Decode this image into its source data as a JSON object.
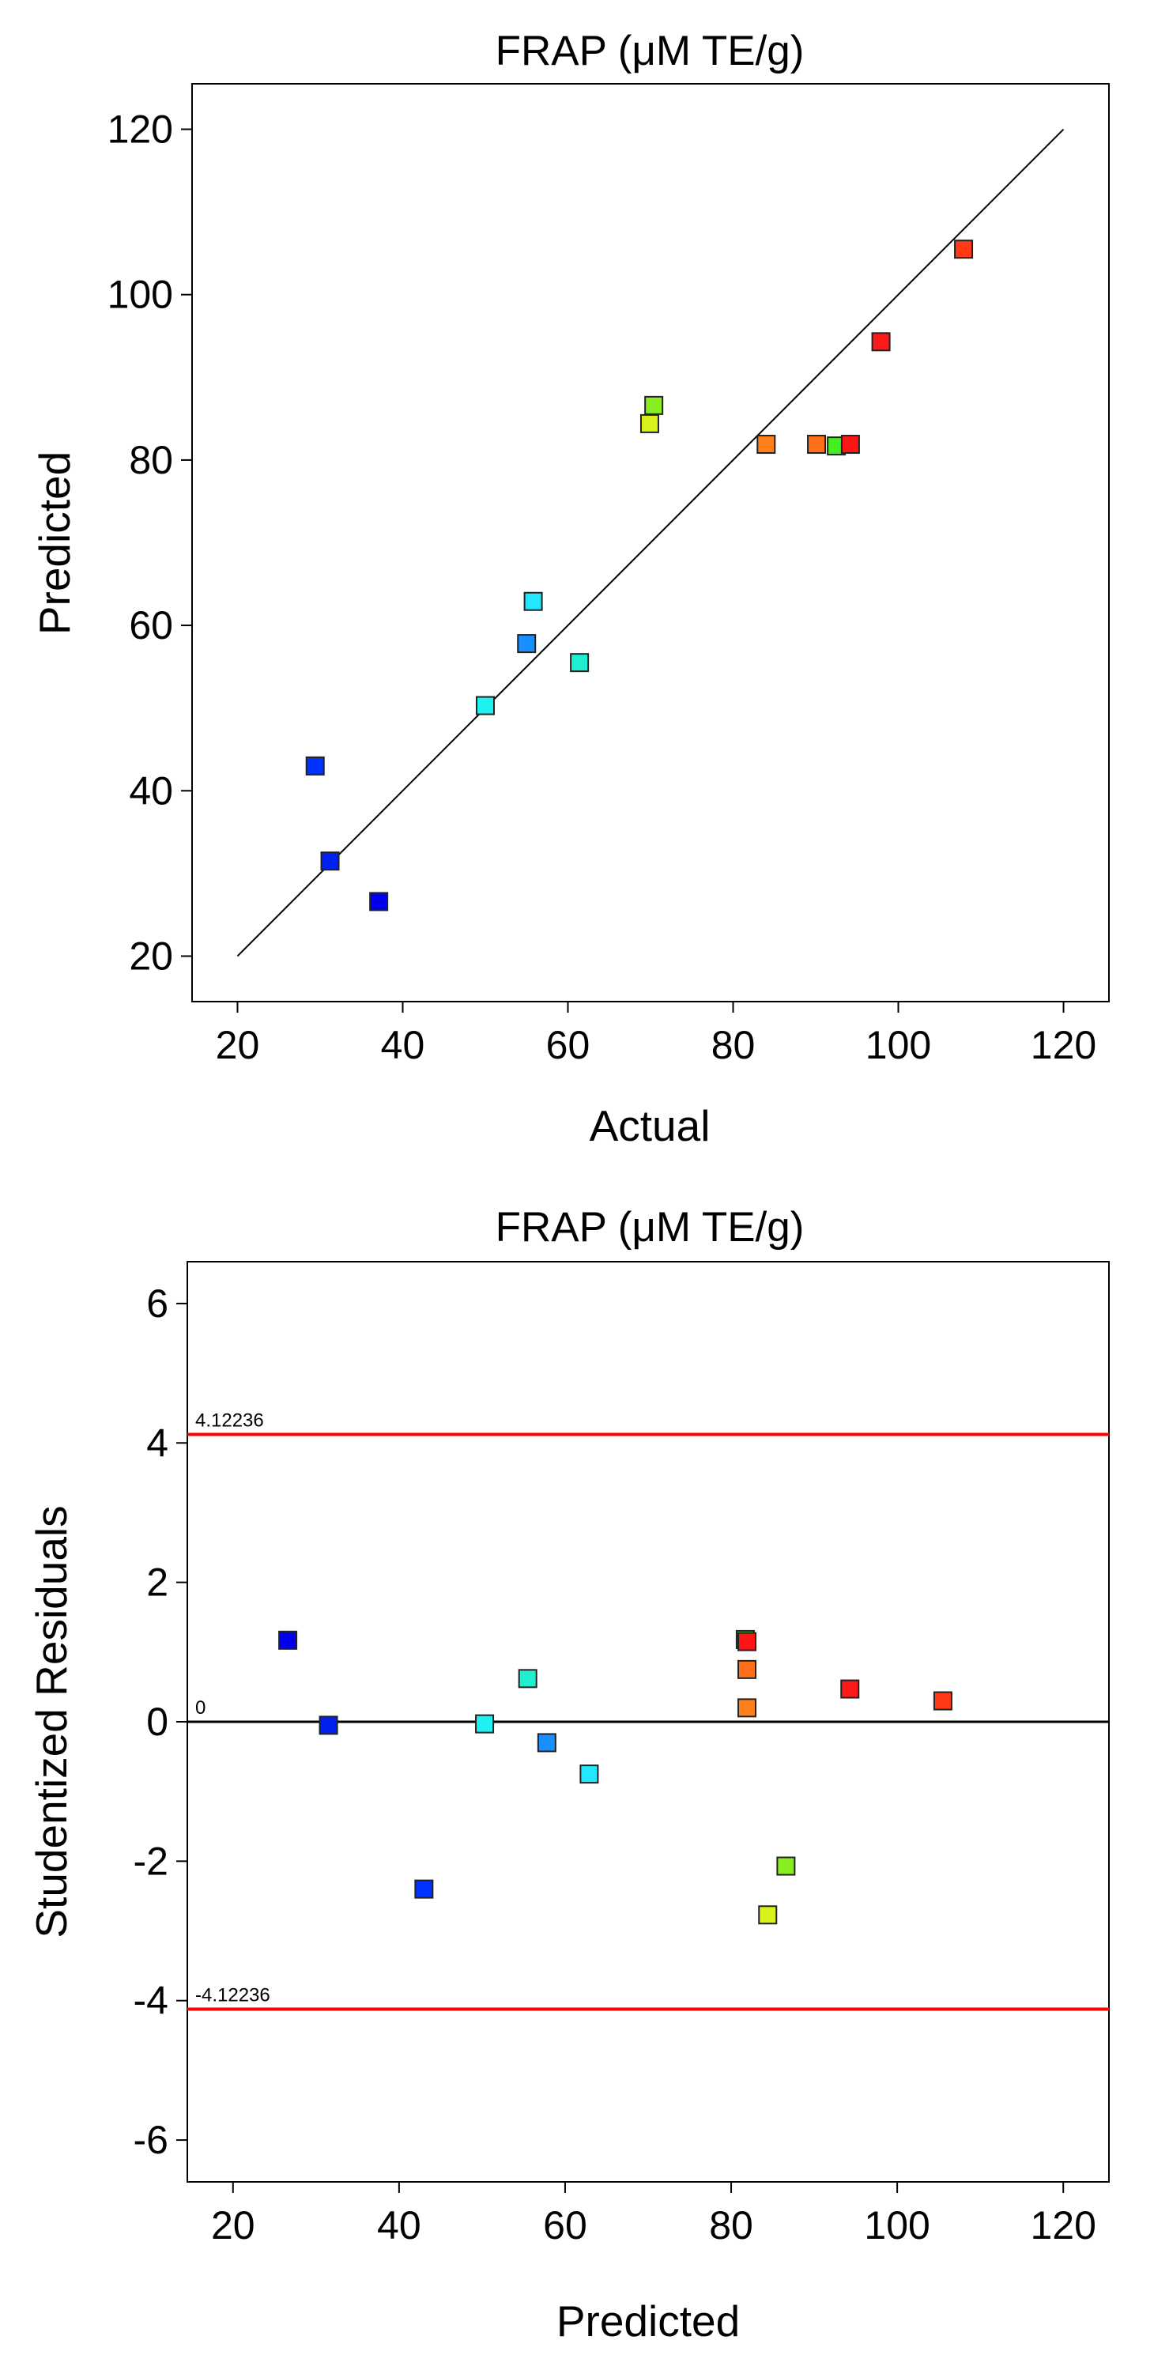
{
  "chart_data": [
    {
      "type": "scatter",
      "title": "FRAP (μM TE/g)",
      "xlabel": "Actual",
      "ylabel": "Predicted",
      "xlim": [
        14.5,
        125.5
      ],
      "ylim": [
        14.5,
        125.5
      ],
      "xticks": [
        20,
        40,
        60,
        80,
        100,
        120
      ],
      "yticks": [
        20,
        40,
        60,
        80,
        100,
        120
      ],
      "reference_line": {
        "from": [
          20,
          20
        ],
        "to": [
          120,
          120
        ],
        "color": "#000000"
      },
      "points": [
        {
          "x": 29.4,
          "y": 43.0,
          "color": "#0033ff"
        },
        {
          "x": 31.2,
          "y": 31.5,
          "color": "#0022ee"
        },
        {
          "x": 37.1,
          "y": 26.6,
          "color": "#0000ee"
        },
        {
          "x": 50.0,
          "y": 50.3,
          "color": "#1ff0f0"
        },
        {
          "x": 55.0,
          "y": 57.8,
          "color": "#1a8fff"
        },
        {
          "x": 55.8,
          "y": 62.9,
          "color": "#22e7ff"
        },
        {
          "x": 61.4,
          "y": 55.5,
          "color": "#1fefd0"
        },
        {
          "x": 69.9,
          "y": 84.4,
          "color": "#d9f21c"
        },
        {
          "x": 70.4,
          "y": 86.6,
          "color": "#88ee22"
        },
        {
          "x": 84.0,
          "y": 81.9,
          "color": "#ff7f1a"
        },
        {
          "x": 90.1,
          "y": 81.9,
          "color": "#ff6f1a"
        },
        {
          "x": 92.5,
          "y": 81.7,
          "color": "#44ee22"
        },
        {
          "x": 94.2,
          "y": 81.9,
          "color": "#ff1515"
        },
        {
          "x": 97.9,
          "y": 94.3,
          "color": "#ff1a1a"
        },
        {
          "x": 107.9,
          "y": 105.5,
          "color": "#ff3a15"
        }
      ]
    },
    {
      "type": "scatter",
      "title": "FRAP (μM TE/g)",
      "xlabel": "Predicted",
      "ylabel": "Studentized Residuals",
      "xlim": [
        14.5,
        125.5
      ],
      "ylim": [
        -6.6,
        6.6
      ],
      "xticks": [
        20,
        40,
        60,
        80,
        100,
        120
      ],
      "yticks": [
        "-6",
        "-4",
        "-2",
        "0",
        "2",
        "4",
        "6"
      ],
      "reference_lines": [
        {
          "value": 4.12236,
          "label": "4.12236",
          "color": "#ff0000"
        },
        {
          "value": 0,
          "label": "0",
          "color": "#000000"
        },
        {
          "value": -4.12236,
          "label": "-4.12236",
          "color": "#ff0000"
        }
      ],
      "points": [
        {
          "x": 26.6,
          "y": 1.17,
          "color": "#0000ee"
        },
        {
          "x": 31.5,
          "y": -0.05,
          "color": "#0022ee"
        },
        {
          "x": 43.0,
          "y": -2.4,
          "color": "#0033ff"
        },
        {
          "x": 50.3,
          "y": -0.03,
          "color": "#1ff0f0"
        },
        {
          "x": 55.5,
          "y": 0.62,
          "color": "#1fefd0"
        },
        {
          "x": 57.8,
          "y": -0.3,
          "color": "#1a8fff"
        },
        {
          "x": 62.9,
          "y": -0.75,
          "color": "#22e7ff"
        },
        {
          "x": 81.7,
          "y": 1.18,
          "color": "#44ee22"
        },
        {
          "x": 81.9,
          "y": 1.15,
          "color": "#ff1515"
        },
        {
          "x": 81.9,
          "y": 0.75,
          "color": "#ff6f1a"
        },
        {
          "x": 81.9,
          "y": 0.2,
          "color": "#ff7f1a"
        },
        {
          "x": 84.4,
          "y": -2.77,
          "color": "#d9f21c"
        },
        {
          "x": 86.6,
          "y": -2.07,
          "color": "#88ee22"
        },
        {
          "x": 94.3,
          "y": 0.47,
          "color": "#ff1a1a"
        },
        {
          "x": 105.5,
          "y": 0.3,
          "color": "#ff3a15"
        }
      ]
    }
  ]
}
